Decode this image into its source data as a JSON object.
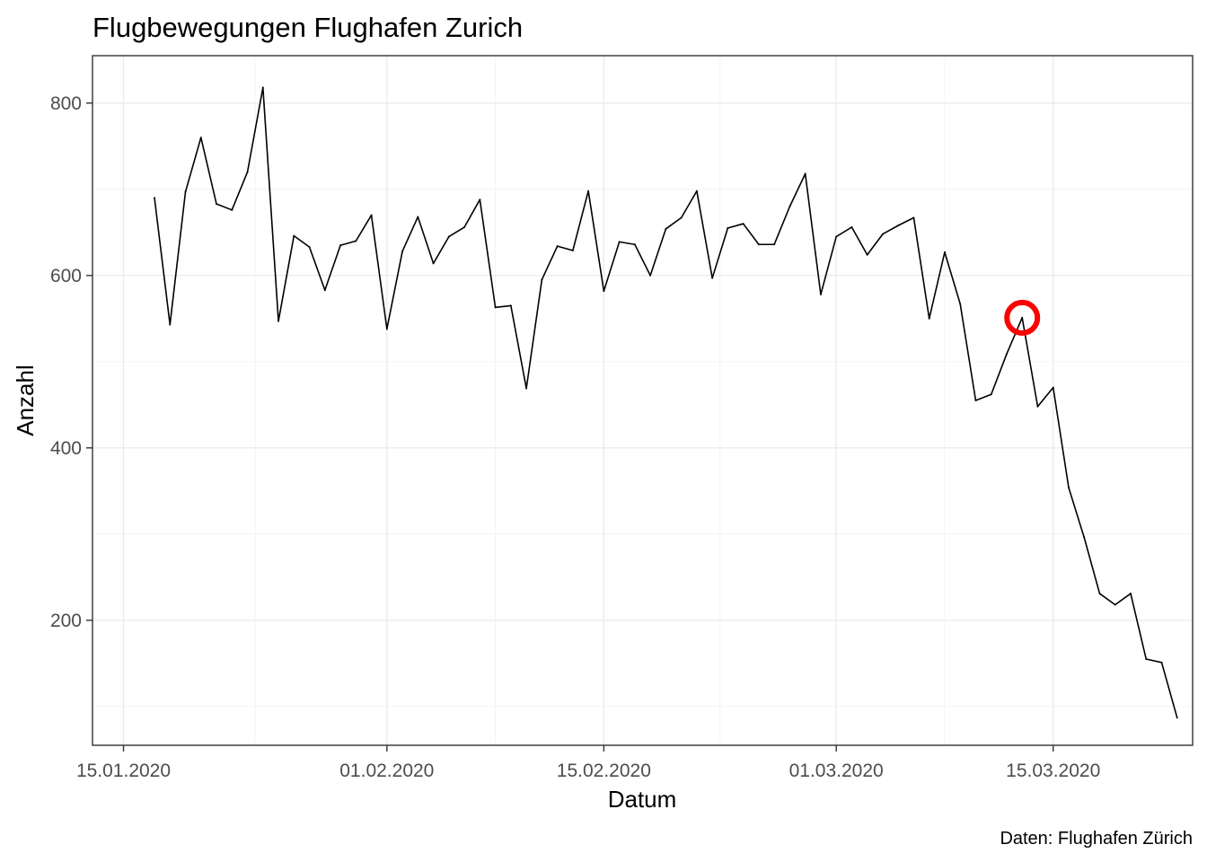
{
  "chart_data": {
    "type": "line",
    "title": "Flugbewegungen Flughafen Zurich",
    "xlabel": "Datum",
    "ylabel": "Anzahl",
    "caption": "Daten: Flughafen Zürich",
    "x_ticks": [
      "15.01.2020",
      "01.02.2020",
      "15.02.2020",
      "01.03.2020",
      "15.03.2020"
    ],
    "y_ticks": [
      200,
      400,
      600,
      800
    ],
    "ylim": [
      55,
      855
    ],
    "xlim": [
      "2020-01-13",
      "2020-03-24"
    ],
    "grid": true,
    "series": [
      {
        "x": [
          "2020-01-17",
          "2020-01-18",
          "2020-01-19",
          "2020-01-20",
          "2020-01-21",
          "2020-01-22",
          "2020-01-23",
          "2020-01-24",
          "2020-01-25",
          "2020-01-26",
          "2020-01-27",
          "2020-01-28",
          "2020-01-29",
          "2020-01-30",
          "2020-01-31",
          "2020-02-01",
          "2020-02-02",
          "2020-02-03",
          "2020-02-04",
          "2020-02-05",
          "2020-02-06",
          "2020-02-07",
          "2020-02-08",
          "2020-02-09",
          "2020-02-10",
          "2020-02-11",
          "2020-02-12",
          "2020-02-13",
          "2020-02-14",
          "2020-02-15",
          "2020-02-16",
          "2020-02-17",
          "2020-02-18",
          "2020-02-19",
          "2020-02-20",
          "2020-02-21",
          "2020-02-22",
          "2020-02-23",
          "2020-02-24",
          "2020-02-25",
          "2020-02-26",
          "2020-02-27",
          "2020-02-28",
          "2020-02-29",
          "2020-03-01",
          "2020-03-02",
          "2020-03-03",
          "2020-03-04",
          "2020-03-05",
          "2020-03-06",
          "2020-03-07",
          "2020-03-08",
          "2020-03-09",
          "2020-03-10",
          "2020-03-11",
          "2020-03-12",
          "2020-03-13",
          "2020-03-14",
          "2020-03-15",
          "2020-03-16",
          "2020-03-17",
          "2020-03-18",
          "2020-03-19",
          "2020-03-20",
          "2020-03-21",
          "2020-03-22",
          "2020-03-23"
        ],
        "values": [
          690,
          543,
          697,
          760,
          683,
          676,
          720,
          818,
          547,
          646,
          633,
          583,
          635,
          640,
          670,
          538,
          628,
          668,
          614,
          645,
          656,
          688,
          563,
          565,
          469,
          595,
          634,
          629,
          698,
          582,
          639,
          636,
          600,
          654,
          667,
          698,
          597,
          655,
          660,
          636,
          636,
          680,
          718,
          578,
          645,
          656,
          624,
          648,
          658,
          667,
          550,
          627,
          567,
          455,
          462,
          509,
          551,
          448,
          470,
          354,
          296,
          231,
          218,
          231,
          155,
          151,
          87
        ]
      }
    ],
    "highlight": {
      "x": "2020-03-13",
      "y": 551,
      "color": "#ff0000"
    }
  }
}
